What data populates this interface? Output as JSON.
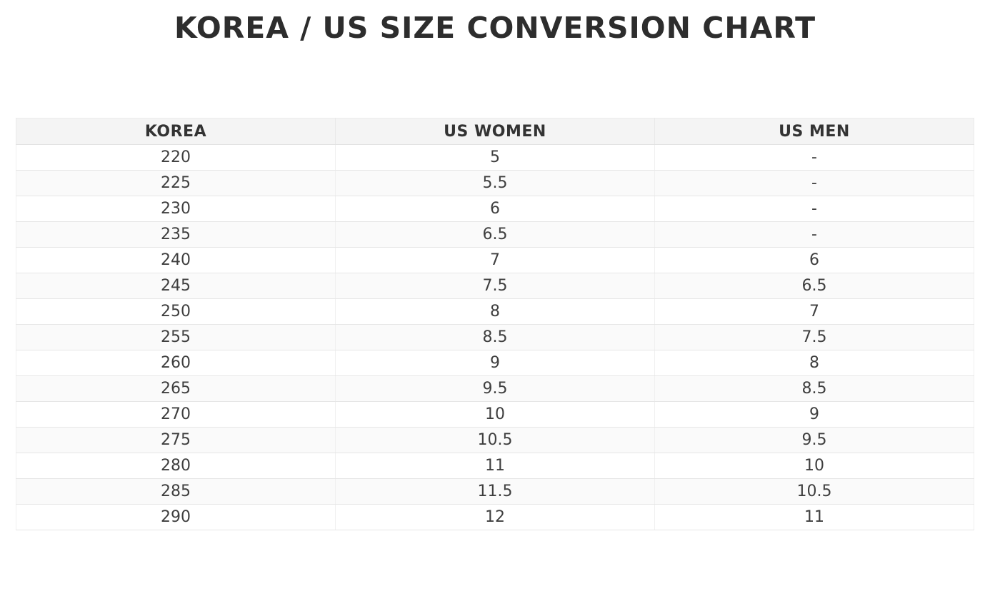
{
  "title": "KOREA / US SIZE CONVERSION CHART",
  "colors": {
    "title_text": "#2d2d2d",
    "header_background": "#f4f4f4",
    "header_text": "#333333",
    "row_alt_background": "#fafafa",
    "cell_text": "#3f3f3f",
    "border": "#e6e6e6"
  },
  "chart_data": {
    "type": "table",
    "title": "KOREA / US SIZE CONVERSION CHART",
    "columns": [
      "KOREA",
      "US WOMEN",
      "US MEN"
    ],
    "rows": [
      [
        "220",
        "5",
        "-"
      ],
      [
        "225",
        "5.5",
        "-"
      ],
      [
        "230",
        "6",
        "-"
      ],
      [
        "235",
        "6.5",
        "-"
      ],
      [
        "240",
        "7",
        "6"
      ],
      [
        "245",
        "7.5",
        "6.5"
      ],
      [
        "250",
        "8",
        "7"
      ],
      [
        "255",
        "8.5",
        "7.5"
      ],
      [
        "260",
        "9",
        "8"
      ],
      [
        "265",
        "9.5",
        "8.5"
      ],
      [
        "270",
        "10",
        "9"
      ],
      [
        "275",
        "10.5",
        "9.5"
      ],
      [
        "280",
        "11",
        "10"
      ],
      [
        "285",
        "11.5",
        "10.5"
      ],
      [
        "290",
        "12",
        "11"
      ]
    ]
  }
}
